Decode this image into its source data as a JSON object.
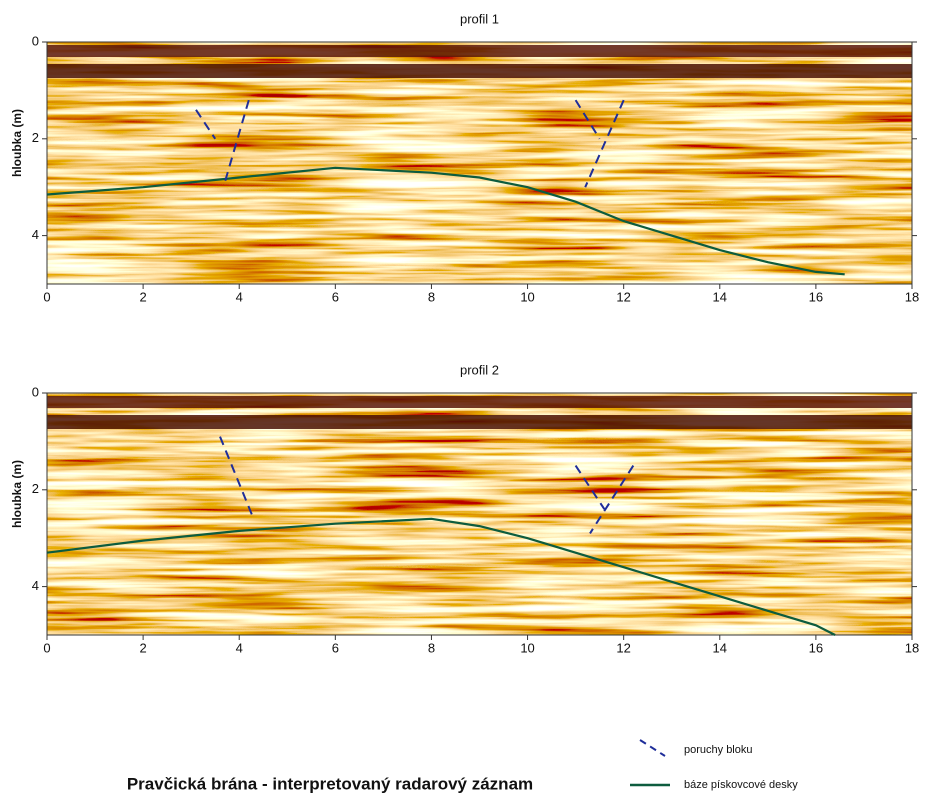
{
  "title": "Pravčická brána - interpretovaný radarový záznam",
  "legend": [
    {
      "label": "poruchy bloku",
      "color": "#1f2e9a",
      "dash": true
    },
    {
      "label": "báze pískovcové desky",
      "color": "#0d5c3e",
      "dash": false
    }
  ],
  "chart_data": [
    {
      "type": "line",
      "title": "profil 1",
      "y_label": "hloubka (m)",
      "xlim": [
        0,
        18
      ],
      "xticks": [
        0,
        2,
        4,
        6,
        8,
        10,
        12,
        14,
        16,
        18
      ],
      "ylim": [
        0,
        5
      ],
      "yticks": [
        0,
        2,
        4
      ],
      "y_reversed": true,
      "series": [
        {
          "kind": "base",
          "color": "#0d5c3e",
          "x": [
            0,
            2,
            4,
            6,
            8,
            9,
            10,
            11,
            12,
            13,
            14,
            15,
            16,
            16.6
          ],
          "values": [
            3.15,
            3.0,
            2.8,
            2.6,
            2.7,
            2.8,
            3.0,
            3.3,
            3.7,
            4.0,
            4.3,
            4.55,
            4.75,
            4.8
          ]
        },
        {
          "kind": "fault",
          "color": "#1f2e9a",
          "x": [
            3.1,
            3.5
          ],
          "values": [
            1.4,
            2.0
          ]
        },
        {
          "kind": "fault",
          "color": "#1f2e9a",
          "x": [
            4.2,
            3.7
          ],
          "values": [
            1.2,
            2.9
          ]
        },
        {
          "kind": "fault",
          "color": "#1f2e9a",
          "x": [
            11.0,
            11.5
          ],
          "values": [
            1.2,
            2.0
          ]
        },
        {
          "kind": "fault",
          "color": "#1f2e9a",
          "x": [
            12.0,
            11.2
          ],
          "values": [
            1.2,
            3.0
          ]
        }
      ]
    },
    {
      "type": "line",
      "title": "profil 2",
      "y_label": "hloubka (m)",
      "xlim": [
        0,
        18
      ],
      "xticks": [
        0,
        2,
        4,
        6,
        8,
        10,
        12,
        14,
        16,
        18
      ],
      "ylim": [
        0,
        5
      ],
      "yticks": [
        0,
        2,
        4
      ],
      "y_reversed": true,
      "series": [
        {
          "kind": "base",
          "color": "#0d5c3e",
          "x": [
            0,
            2,
            4,
            6,
            8,
            9,
            10,
            11,
            12,
            13,
            14,
            15,
            16,
            16.4
          ],
          "values": [
            3.3,
            3.05,
            2.85,
            2.7,
            2.6,
            2.75,
            3.0,
            3.3,
            3.6,
            3.9,
            4.2,
            4.5,
            4.8,
            5.0
          ]
        },
        {
          "kind": "fault",
          "color": "#1f2e9a",
          "x": [
            3.6,
            4.3
          ],
          "values": [
            0.9,
            2.6
          ]
        },
        {
          "kind": "fault",
          "color": "#1f2e9a",
          "x": [
            11.0,
            11.6
          ],
          "values": [
            1.5,
            2.4
          ]
        },
        {
          "kind": "fault",
          "color": "#1f2e9a",
          "x": [
            12.2,
            11.3
          ],
          "values": [
            1.5,
            2.9
          ]
        }
      ]
    }
  ]
}
